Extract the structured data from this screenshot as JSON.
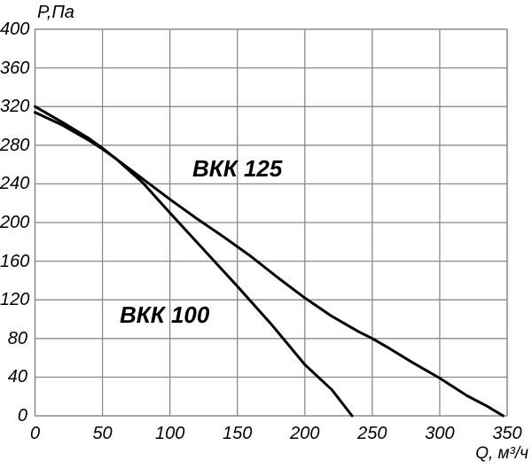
{
  "chart_data": {
    "type": "line",
    "title": "",
    "xlabel": "Q, м³/ч",
    "ylabel": "P,Па",
    "xlim": [
      0,
      350
    ],
    "ylim": [
      0,
      400
    ],
    "x_ticks": [
      0,
      50,
      100,
      150,
      200,
      250,
      300,
      350
    ],
    "y_ticks": [
      0,
      40,
      80,
      120,
      160,
      200,
      240,
      280,
      320,
      360,
      400
    ],
    "grid": true,
    "legend_position": "inline-curve-labels",
    "series": [
      {
        "name": "ВКК 125",
        "points": [
          [
            0,
            314
          ],
          [
            20,
            301
          ],
          [
            40,
            285
          ],
          [
            50,
            276
          ],
          [
            60,
            266
          ],
          [
            80,
            245
          ],
          [
            100,
            224
          ],
          [
            120,
            204
          ],
          [
            140,
            185
          ],
          [
            150,
            175
          ],
          [
            160,
            165
          ],
          [
            180,
            143
          ],
          [
            200,
            122
          ],
          [
            220,
            103
          ],
          [
            240,
            87
          ],
          [
            250,
            80
          ],
          [
            260,
            72
          ],
          [
            280,
            55
          ],
          [
            300,
            39
          ],
          [
            320,
            21
          ],
          [
            335,
            10
          ],
          [
            347,
            0
          ]
        ]
      },
      {
        "name": "ВКК 100",
        "points": [
          [
            0,
            320
          ],
          [
            20,
            304
          ],
          [
            40,
            287
          ],
          [
            50,
            277
          ],
          [
            60,
            266
          ],
          [
            80,
            241
          ],
          [
            100,
            210
          ],
          [
            125,
            172
          ],
          [
            150,
            134
          ],
          [
            175,
            95
          ],
          [
            200,
            53
          ],
          [
            220,
            27
          ],
          [
            235,
            0
          ]
        ]
      }
    ]
  },
  "styles": {
    "background": "#ffffff",
    "grid_color": "#8a8a8a",
    "curve_color": "#000000",
    "text_color": "#000000"
  }
}
